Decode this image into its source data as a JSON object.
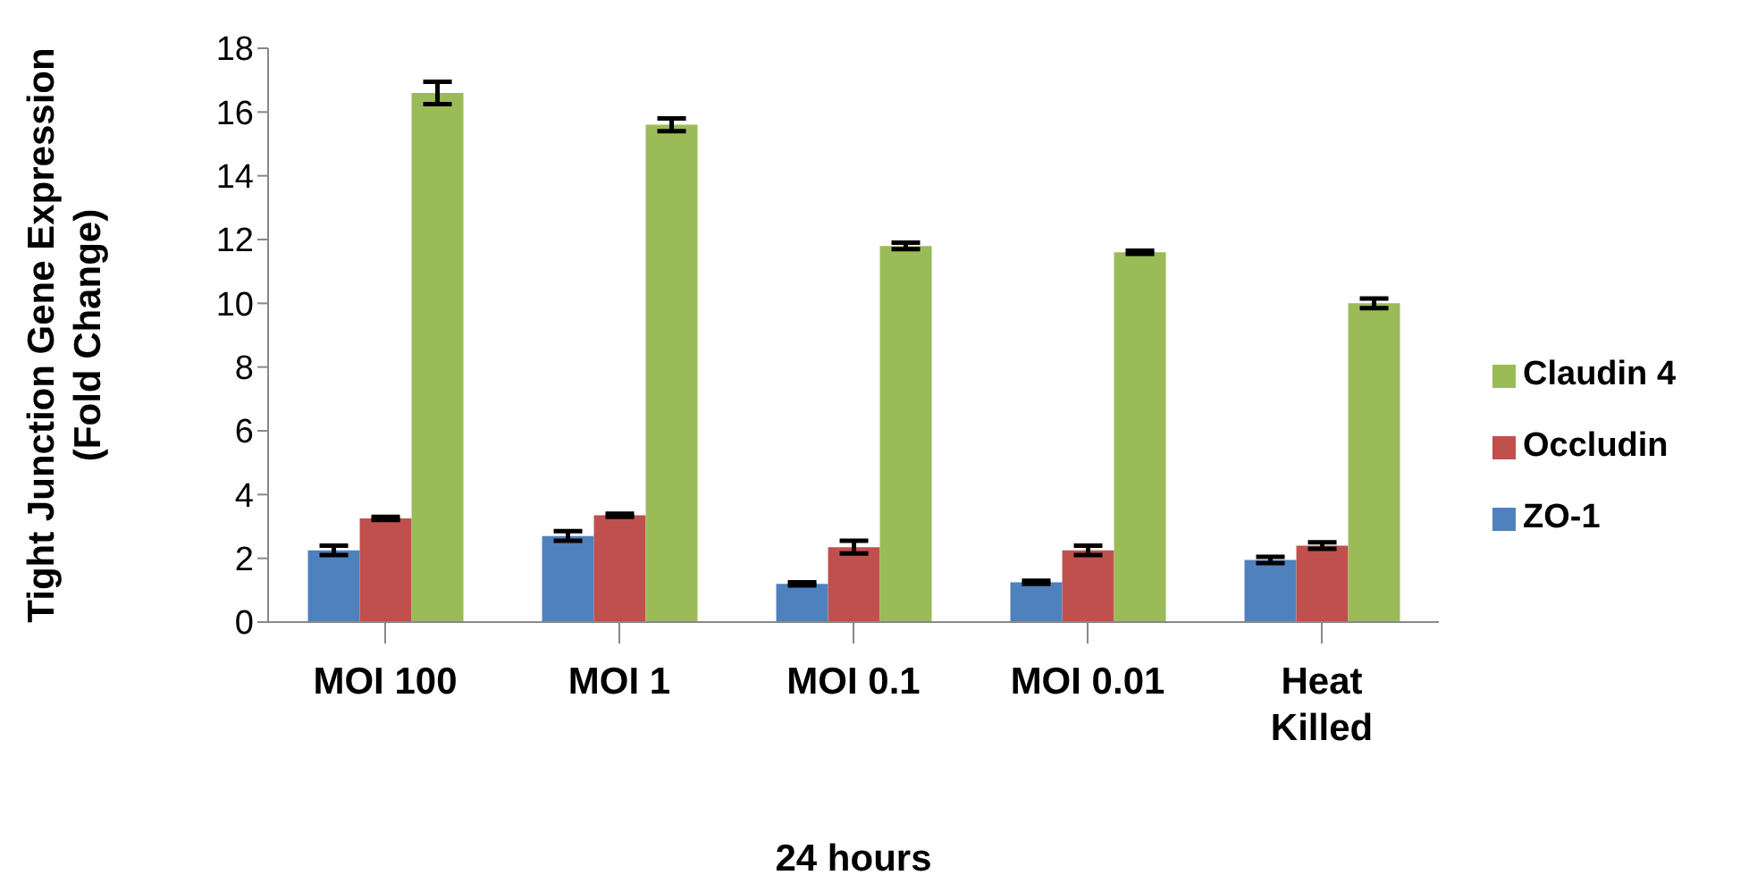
{
  "chart_data": {
    "type": "bar",
    "xlabel": "24 hours",
    "ylabel": "Tight Junction Gene Expression\n(Fold Change)",
    "categories": [
      "MOI 100",
      "MOI 1",
      "MOI 0.1",
      "MOI 0.01",
      "Heat Killed"
    ],
    "series": [
      {
        "name": "ZO-1",
        "color": "#4f81bd",
        "values": [
          2.25,
          2.7,
          1.2,
          1.25,
          1.95
        ],
        "errors": [
          0.15,
          0.15,
          0.05,
          0.05,
          0.1
        ]
      },
      {
        "name": "Occludin",
        "color": "#c0504d",
        "values": [
          3.25,
          3.35,
          2.35,
          2.25,
          2.4
        ],
        "errors": [
          0.05,
          0.05,
          0.2,
          0.15,
          0.1
        ]
      },
      {
        "name": "Claudin 4",
        "color": "#9bbb59",
        "values": [
          16.6,
          15.6,
          11.8,
          11.6,
          10.0
        ],
        "errors": [
          0.35,
          0.2,
          0.1,
          0.05,
          0.15
        ]
      }
    ],
    "ylim": [
      0,
      18
    ],
    "yticks": [
      0,
      2,
      4,
      6,
      8,
      10,
      12,
      14,
      16,
      18
    ],
    "grid": false,
    "legend": "right"
  }
}
